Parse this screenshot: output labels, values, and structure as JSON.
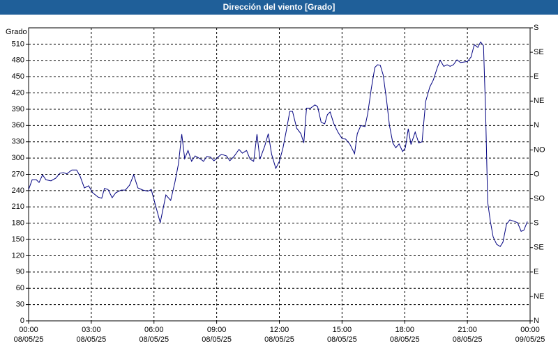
{
  "chart_data": {
    "type": "line",
    "title": "Dirección del viento [Grado]",
    "y_label": "Grado",
    "xlim": [
      0,
      24
    ],
    "xticks": [
      {
        "value": 0,
        "label": "00:00\n08/05/25"
      },
      {
        "value": 3,
        "label": "03:00\n08/05/25"
      },
      {
        "value": 6,
        "label": "06:00\n08/05/25"
      },
      {
        "value": 9,
        "label": "09:00\n08/05/25"
      },
      {
        "value": 12,
        "label": "12:00\n08/05/25"
      },
      {
        "value": 15,
        "label": "15:00\n08/05/25"
      },
      {
        "value": 18,
        "label": "18:00\n08/05/25"
      },
      {
        "value": 21,
        "label": "21:00\n08/05/25"
      },
      {
        "value": 24,
        "label": "00:00\n09/05/25"
      }
    ],
    "ylim": [
      0,
      540
    ],
    "yticks": [
      0,
      30,
      60,
      90,
      120,
      150,
      180,
      210,
      240,
      270,
      300,
      330,
      360,
      390,
      420,
      450,
      480,
      510
    ],
    "y2lim": [
      0,
      540
    ],
    "y2ticks": [
      {
        "value": 0,
        "label": "N"
      },
      {
        "value": 45,
        "label": "NE"
      },
      {
        "value": 90,
        "label": "E"
      },
      {
        "value": 135,
        "label": "SE"
      },
      {
        "value": 180,
        "label": "S"
      },
      {
        "value": 225,
        "label": "SO"
      },
      {
        "value": 270,
        "label": "O"
      },
      {
        "value": 315,
        "label": "NO"
      },
      {
        "value": 360,
        "label": "N"
      },
      {
        "value": 405,
        "label": "NE"
      },
      {
        "value": 450,
        "label": "E"
      },
      {
        "value": 495,
        "label": "SE"
      },
      {
        "value": 540,
        "label": "S"
      }
    ],
    "grid": true,
    "x": [
      0,
      0.17,
      0.37,
      0.5,
      0.67,
      0.83,
      1.07,
      1.3,
      1.5,
      1.67,
      1.83,
      2.07,
      2.3,
      2.47,
      2.67,
      2.87,
      3.07,
      3.33,
      3.5,
      3.63,
      3.8,
      4.0,
      4.17,
      4.43,
      4.63,
      4.83,
      5.03,
      5.23,
      5.47,
      5.7,
      5.87,
      6.03,
      6.3,
      6.57,
      6.8,
      7.0,
      7.17,
      7.33,
      7.47,
      7.63,
      7.8,
      7.97,
      8.2,
      8.37,
      8.53,
      8.7,
      8.87,
      9.07,
      9.23,
      9.47,
      9.63,
      9.83,
      10.07,
      10.23,
      10.43,
      10.6,
      10.77,
      10.93,
      11.07,
      11.3,
      11.47,
      11.63,
      11.83,
      12.0,
      12.17,
      12.33,
      12.5,
      12.63,
      12.83,
      13.03,
      13.17,
      13.3,
      13.5,
      13.7,
      13.83,
      14.0,
      14.17,
      14.3,
      14.43,
      14.6,
      14.8,
      15.0,
      15.17,
      15.37,
      15.6,
      15.73,
      15.9,
      16.1,
      16.23,
      16.4,
      16.57,
      16.7,
      16.83,
      16.97,
      17.13,
      17.27,
      17.43,
      17.57,
      17.73,
      17.9,
      18.03,
      18.17,
      18.3,
      18.5,
      18.67,
      18.83,
      19.0,
      19.2,
      19.37,
      19.57,
      19.7,
      19.87,
      20.03,
      20.17,
      20.33,
      20.5,
      20.67,
      20.83,
      21.0,
      21.17,
      21.33,
      21.5,
      21.63,
      21.77,
      21.87,
      21.97,
      22.1,
      22.23,
      22.4,
      22.57,
      22.7,
      22.87,
      23.03,
      23.27,
      23.4,
      23.57,
      23.7,
      23.87
    ],
    "series": [
      {
        "color": "#000080",
        "values": [
          242,
          260,
          260,
          255,
          269,
          260,
          258,
          263,
          272,
          273,
          271,
          278,
          278,
          266,
          245,
          249,
          236,
          228,
          226,
          244,
          242,
          227,
          236,
          241,
          241,
          250,
          269,
          245,
          241,
          239,
          242,
          219,
          181,
          232,
          222,
          255,
          289,
          344,
          299,
          314,
          294,
          304,
          299,
          294,
          303,
          302,
          295,
          302,
          307,
          304,
          295,
          303,
          316,
          309,
          314,
          298,
          294,
          344,
          298,
          322,
          345,
          307,
          281,
          294,
          318,
          350,
          386,
          386,
          355,
          345,
          328,
          392,
          392,
          398,
          395,
          366,
          363,
          380,
          385,
          364,
          348,
          336,
          335,
          326,
          308,
          345,
          360,
          358,
          382,
          428,
          467,
          472,
          471,
          453,
          407,
          360,
          328,
          319,
          326,
          312,
          319,
          354,
          325,
          348,
          328,
          330,
          404,
          431,
          444,
          468,
          480,
          469,
          472,
          469,
          472,
          481,
          476,
          477,
          478,
          486,
          509,
          504,
          514,
          507,
          386,
          219,
          183,
          155,
          141,
          137,
          145,
          178,
          186,
          183,
          181,
          165,
          167,
          183
        ]
      }
    ]
  }
}
